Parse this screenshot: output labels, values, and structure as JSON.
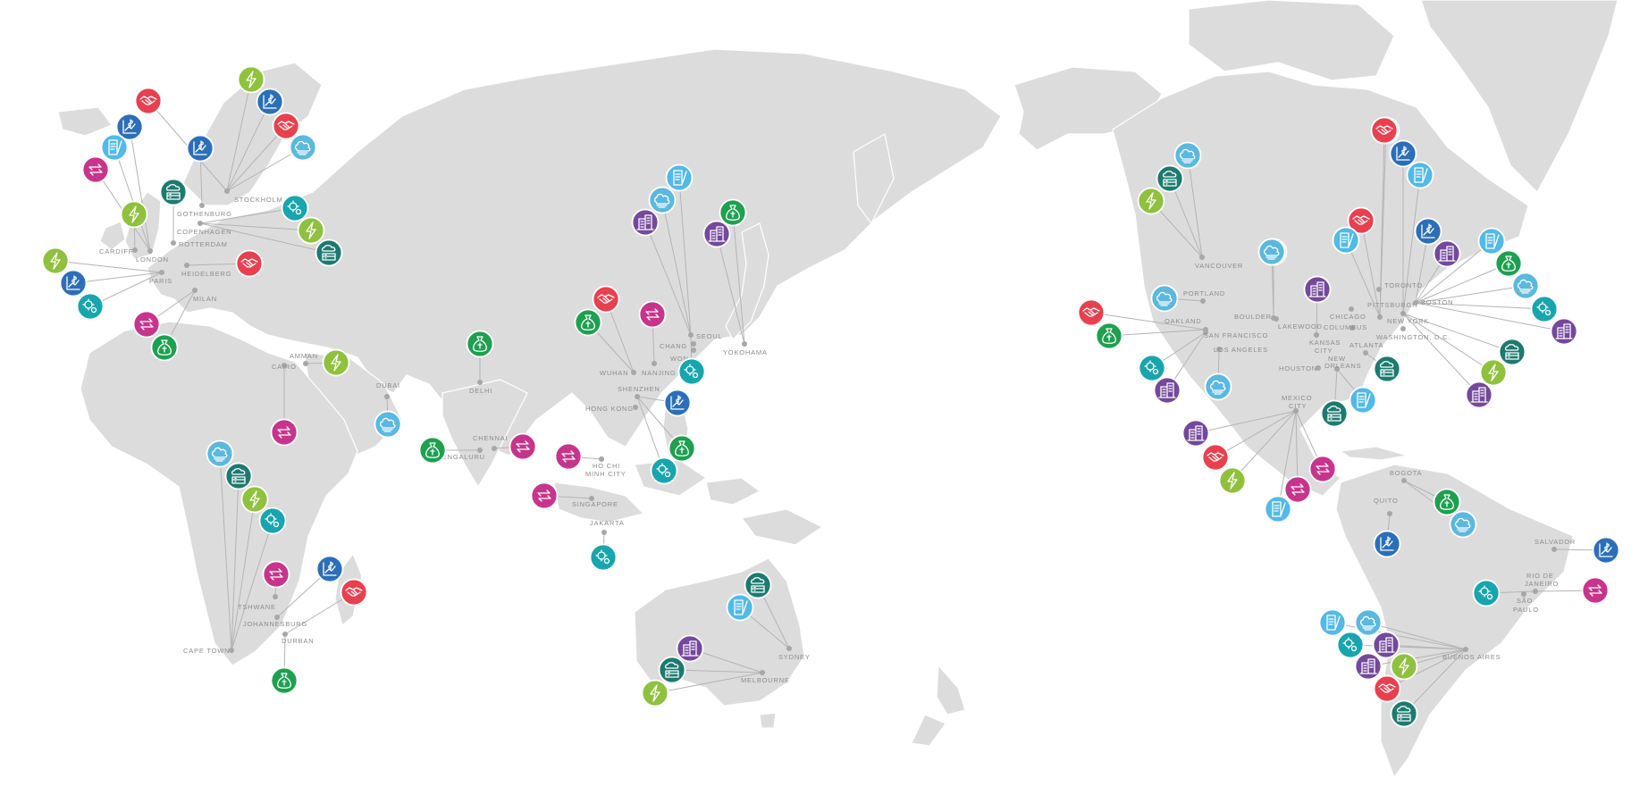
{
  "map": {
    "background": "#ffffff",
    "land_color": "#dcdcdc",
    "connector_color": "#b4b4b4",
    "label_color": "#8c8c8c"
  },
  "categories": {
    "energy": {
      "icon": "lightning-bolt-icon",
      "color": "#8fc13f"
    },
    "finance": {
      "icon": "money-bag-icon",
      "color": "#1ea050"
    },
    "partnership": {
      "icon": "handshake-icon",
      "color": "#e8404f"
    },
    "exchange": {
      "icon": "arrows-exchange-icon",
      "color": "#c7348c"
    },
    "investment": {
      "icon": "chart-dollar-icon",
      "color": "#2c6fb8"
    },
    "cloud": {
      "icon": "cloud-icon",
      "color": "#5bb8de"
    },
    "document": {
      "icon": "document-pen-icon",
      "color": "#53b9e6"
    },
    "data-center": {
      "icon": "server-cloud-icon",
      "color": "#1d7a70"
    },
    "settings": {
      "icon": "gear-gear-icon",
      "color": "#18a5ad"
    },
    "buildings": {
      "icon": "buildings-icon",
      "color": "#74489a"
    }
  },
  "cities": [
    {
      "name": "STOCKHOLM"
    },
    {
      "name": "GOTHENBURG"
    },
    {
      "name": "COPENHAGEN"
    },
    {
      "name": "ROTTERDAM"
    },
    {
      "name": "CARDIFF"
    },
    {
      "name": "LONDON"
    },
    {
      "name": "PARIS"
    },
    {
      "name": "HEIDELBERG"
    },
    {
      "name": "MILAN"
    },
    {
      "name": "AMMAN"
    },
    {
      "name": "CAIRO"
    },
    {
      "name": "DUBAI"
    },
    {
      "name": "DELHI"
    },
    {
      "name": "CHENNAI"
    },
    {
      "name": "BENGALURU"
    },
    {
      "name": "TSHWANE"
    },
    {
      "name": "JOHANNESBURG"
    },
    {
      "name": "DURBAN"
    },
    {
      "name": "CAPE TOWN"
    },
    {
      "name": "SEOUL"
    },
    {
      "name": "CHANG"
    },
    {
      "name": "WON"
    },
    {
      "name": "YOKOHAMA"
    },
    {
      "name": "WUHAN"
    },
    {
      "name": "NANJING"
    },
    {
      "name": "SHENZHEN"
    },
    {
      "name": "HONG KONG"
    },
    {
      "name": "HO CHI"
    },
    {
      "name": "MINH CITY"
    },
    {
      "name": "SINGAPORE"
    },
    {
      "name": "JAKARTA"
    },
    {
      "name": "SYDNEY"
    },
    {
      "name": "MELBOURNE"
    },
    {
      "name": "VANCOUVER"
    },
    {
      "name": "PORTLAND"
    },
    {
      "name": "OAKLAND"
    },
    {
      "name": "SAN FRANCISCO"
    },
    {
      "name": "LOS ANGELES"
    },
    {
      "name": "BOULDER"
    },
    {
      "name": "LAKEWOOD"
    },
    {
      "name": "KANSAS"
    },
    {
      "name": "CITY"
    },
    {
      "name": "CHICAGO"
    },
    {
      "name": "COLUMBUS"
    },
    {
      "name": "TORONTO"
    },
    {
      "name": "PITTSBURGH"
    },
    {
      "name": "BOSTON"
    },
    {
      "name": "NEW YORK"
    },
    {
      "name": "WASHINGTON, D.C."
    },
    {
      "name": "ATLANTA"
    },
    {
      "name": "HOUSTON"
    },
    {
      "name": "NEW"
    },
    {
      "name": "ORLEANS"
    },
    {
      "name": "MEXICO"
    },
    {
      "name": "CITY"
    },
    {
      "name": "BOGOTA"
    },
    {
      "name": "QUITO"
    },
    {
      "name": "SALVADOR"
    },
    {
      "name": "RIO DE"
    },
    {
      "name": "JANEIRO"
    },
    {
      "name": "SÃO"
    },
    {
      "name": "PAULO"
    },
    {
      "name": "BUENOS AIRES"
    }
  ],
  "markers": [
    {
      "category": "partnership"
    },
    {
      "category": "energy"
    },
    {
      "category": "investment"
    },
    {
      "category": "partnership"
    },
    {
      "category": "investment"
    },
    {
      "category": "document"
    },
    {
      "category": "cloud"
    },
    {
      "category": "exchange"
    },
    {
      "category": "investment"
    },
    {
      "category": "data-center"
    },
    {
      "category": "energy"
    },
    {
      "category": "settings"
    },
    {
      "category": "energy"
    },
    {
      "category": "data-center"
    },
    {
      "category": "partnership"
    },
    {
      "category": "energy"
    },
    {
      "category": "investment"
    },
    {
      "category": "settings"
    },
    {
      "category": "exchange"
    },
    {
      "category": "finance"
    },
    {
      "category": "energy"
    },
    {
      "category": "exchange"
    },
    {
      "category": "cloud"
    },
    {
      "category": "finance"
    },
    {
      "category": "finance"
    },
    {
      "category": "exchange"
    },
    {
      "category": "cloud"
    },
    {
      "category": "data-center"
    },
    {
      "category": "energy"
    },
    {
      "category": "settings"
    },
    {
      "category": "exchange"
    },
    {
      "category": "investment"
    },
    {
      "category": "partnership"
    },
    {
      "category": "finance"
    },
    {
      "category": "document"
    },
    {
      "category": "cloud"
    },
    {
      "category": "buildings"
    },
    {
      "category": "buildings"
    },
    {
      "category": "finance"
    },
    {
      "category": "partnership"
    },
    {
      "category": "finance"
    },
    {
      "category": "exchange"
    },
    {
      "category": "settings"
    },
    {
      "category": "investment"
    },
    {
      "category": "finance"
    },
    {
      "category": "settings"
    },
    {
      "category": "exchange"
    },
    {
      "category": "exchange"
    },
    {
      "category": "settings"
    },
    {
      "category": "data-center"
    },
    {
      "category": "document"
    },
    {
      "category": "buildings"
    },
    {
      "category": "data-center"
    },
    {
      "category": "energy"
    },
    {
      "category": "cloud"
    },
    {
      "category": "data-center"
    },
    {
      "category": "energy"
    },
    {
      "category": "cloud"
    },
    {
      "category": "document"
    },
    {
      "category": "cloud"
    },
    {
      "category": "partnership"
    },
    {
      "category": "finance"
    },
    {
      "category": "settings"
    },
    {
      "category": "buildings"
    },
    {
      "category": "cloud"
    },
    {
      "category": "buildings"
    },
    {
      "category": "partnership"
    },
    {
      "category": "document"
    },
    {
      "category": "document"
    },
    {
      "category": "partnership"
    },
    {
      "category": "investment"
    },
    {
      "category": "document"
    },
    {
      "category": "investment"
    },
    {
      "category": "buildings"
    },
    {
      "category": "document"
    },
    {
      "category": "finance"
    },
    {
      "category": "cloud"
    },
    {
      "category": "settings"
    },
    {
      "category": "buildings"
    },
    {
      "category": "data-center"
    },
    {
      "category": "energy"
    },
    {
      "category": "buildings"
    },
    {
      "category": "data-center"
    },
    {
      "category": "document"
    },
    {
      "category": "data-center"
    },
    {
      "category": "buildings"
    },
    {
      "category": "partnership"
    },
    {
      "category": "energy"
    },
    {
      "category": "document"
    },
    {
      "category": "exchange"
    },
    {
      "category": "exchange"
    },
    {
      "category": "finance"
    },
    {
      "category": "cloud"
    },
    {
      "category": "investment"
    },
    {
      "category": "investment"
    },
    {
      "category": "settings"
    },
    {
      "category": "exchange"
    },
    {
      "category": "document"
    },
    {
      "category": "settings"
    },
    {
      "category": "buildings"
    },
    {
      "category": "partnership"
    },
    {
      "category": "data-center"
    },
    {
      "category": "cloud"
    },
    {
      "category": "buildings"
    },
    {
      "category": "energy"
    }
  ]
}
